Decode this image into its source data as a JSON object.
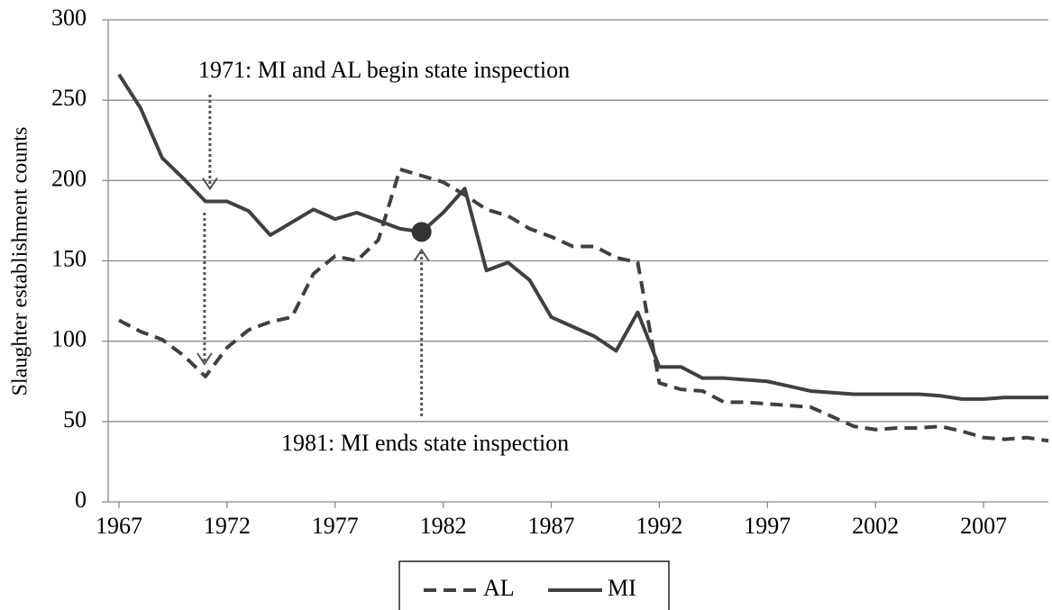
{
  "chart_data": {
    "type": "line",
    "y_label": "Slaughter establishment counts",
    "x": [
      1967,
      1968,
      1969,
      1970,
      1971,
      1972,
      1973,
      1974,
      1975,
      1976,
      1977,
      1978,
      1979,
      1980,
      1981,
      1982,
      1983,
      1984,
      1985,
      1986,
      1987,
      1988,
      1989,
      1990,
      1991,
      1992,
      1993,
      1994,
      1995,
      1996,
      1997,
      1998,
      1999,
      2000,
      2001,
      2002,
      2003,
      2004,
      2005,
      2006,
      2007,
      2008,
      2009,
      2010
    ],
    "series": [
      {
        "name": "AL",
        "color": "#404040",
        "dashed": true,
        "values": [
          113,
          106,
          101,
          91,
          78,
          96,
          107,
          112,
          115,
          142,
          153,
          150,
          163,
          207,
          203,
          199,
          191,
          182,
          178,
          170,
          165,
          159,
          159,
          152,
          149,
          74,
          70,
          69,
          62,
          62,
          61,
          60,
          59,
          53,
          47,
          45,
          46,
          46,
          47,
          44,
          40,
          39,
          40,
          38
        ]
      },
      {
        "name": "MI",
        "color": "#404040",
        "dashed": false,
        "values": [
          266,
          245,
          214,
          201,
          187,
          187,
          181,
          166,
          174,
          182,
          176,
          180,
          175,
          170,
          168,
          180,
          195,
          144,
          149,
          138,
          115,
          109,
          103,
          94,
          118,
          84,
          84,
          77,
          77,
          76,
          75,
          72,
          69,
          68,
          67,
          67,
          67,
          67,
          66,
          64,
          64,
          65,
          65,
          65
        ]
      }
    ],
    "annotations": [
      {
        "text": "1971: MI and AL begin state inspection",
        "x": 1971
      },
      {
        "text": "1981: MI ends state inspection",
        "x": 1981,
        "marker": true
      }
    ],
    "xlim": [
      1966.5,
      2010
    ],
    "xticks": [
      1967,
      1972,
      1977,
      1982,
      1987,
      1992,
      1997,
      2002,
      2007
    ],
    "ylim": [
      0,
      300
    ],
    "yticks": [
      0,
      50,
      100,
      150,
      200,
      250,
      300
    ],
    "grid": true,
    "legend": "bottom"
  }
}
